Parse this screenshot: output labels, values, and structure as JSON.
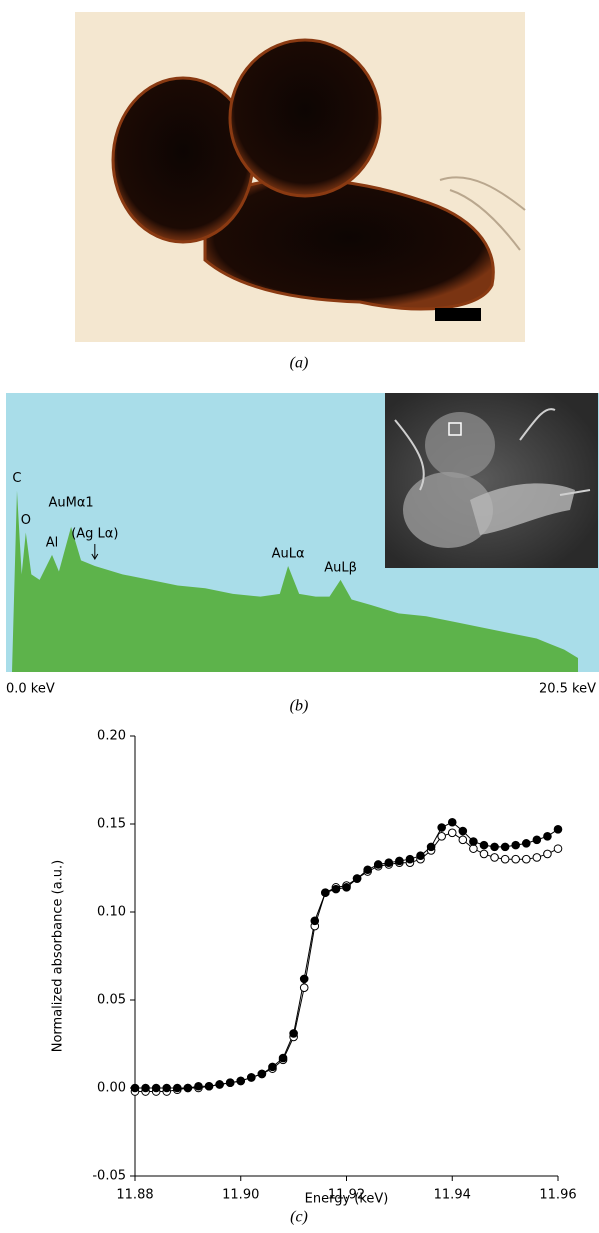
{
  "figure": {
    "panel_labels": [
      "(a)",
      "(b)",
      "(c)"
    ]
  },
  "chart_data": [
    {
      "type": "area",
      "color": "#5db34b",
      "background": "#a9dde9",
      "x": [
        0,
        0.18,
        0.35,
        0.5,
        0.7,
        1.0,
        1.45,
        1.7,
        2.14,
        2.5,
        3.0,
        4,
        5,
        6,
        7,
        8,
        9,
        9.7,
        10.0,
        10.4,
        11,
        11.5,
        11.9,
        12.3,
        13,
        14,
        15,
        16,
        17,
        18,
        19,
        19.5,
        20,
        20.5
      ],
      "values": [
        0,
        65,
        35,
        50,
        35,
        33,
        42,
        36,
        52,
        40,
        38,
        35,
        33,
        31,
        30,
        28,
        27,
        28,
        38,
        28,
        27,
        27,
        33,
        26,
        24,
        21,
        20,
        18,
        16,
        14,
        12,
        10,
        8,
        5
      ],
      "xlim": [
        0,
        20.5
      ],
      "ylim": [
        0,
        100
      ],
      "xticks": [
        {
          "value": 0,
          "label": "0.0 keV"
        },
        {
          "value": 20.5,
          "label": "20.5 keV"
        }
      ],
      "annotations": [
        {
          "text": "C",
          "x": 0.18
        },
        {
          "text": "O",
          "x": 0.5
        },
        {
          "text": "Al",
          "x": 1.45
        },
        {
          "text": "AuMα1",
          "x": 2.14
        },
        {
          "text": "(Ag Lα)",
          "x": 3.0
        },
        {
          "text": "AuLα",
          "x": 10.0
        },
        {
          "text": "AuLβ",
          "x": 11.9
        }
      ]
    },
    {
      "type": "line",
      "x_label": "Energy (keV)",
      "y_label": "Normalized absorbance (a.u.)",
      "x": [
        11.88,
        11.882,
        11.884,
        11.886,
        11.888,
        11.89,
        11.892,
        11.894,
        11.896,
        11.898,
        11.9,
        11.902,
        11.904,
        11.906,
        11.908,
        11.91,
        11.912,
        11.914,
        11.916,
        11.918,
        11.92,
        11.922,
        11.924,
        11.926,
        11.928,
        11.93,
        11.932,
        11.934,
        11.936,
        11.938,
        11.94,
        11.942,
        11.944,
        11.946,
        11.948,
        11.95,
        11.952,
        11.954,
        11.956,
        11.958,
        11.96
      ],
      "series": [
        {
          "color": "#000000",
          "marker": "open",
          "values": [
            -0.002,
            -0.002,
            -0.002,
            -0.002,
            -0.001,
            0.0,
            0.0,
            0.001,
            0.002,
            0.003,
            0.004,
            0.006,
            0.008,
            0.011,
            0.016,
            0.029,
            0.057,
            0.092,
            0.111,
            0.114,
            0.115,
            0.119,
            0.123,
            0.126,
            0.127,
            0.128,
            0.128,
            0.13,
            0.135,
            0.143,
            0.145,
            0.141,
            0.136,
            0.133,
            0.131,
            0.13,
            0.13,
            0.13,
            0.131,
            0.133,
            0.136
          ]
        },
        {
          "color": "#000000",
          "marker": "filled",
          "values": [
            0.0,
            0.0,
            0.0,
            0.0,
            0.0,
            0.0,
            0.001,
            0.001,
            0.002,
            0.003,
            0.004,
            0.006,
            0.008,
            0.012,
            0.017,
            0.031,
            0.062,
            0.095,
            0.111,
            0.113,
            0.114,
            0.119,
            0.124,
            0.127,
            0.128,
            0.129,
            0.13,
            0.132,
            0.137,
            0.148,
            0.151,
            0.146,
            0.14,
            0.138,
            0.137,
            0.137,
            0.138,
            0.139,
            0.141,
            0.143,
            0.147
          ]
        }
      ],
      "xlim": [
        11.88,
        11.96
      ],
      "ylim": [
        -0.05,
        0.2
      ],
      "xticks": [
        11.88,
        {
          "value": 11.9,
          "label": "11.90"
        },
        11.92,
        11.94,
        11.96
      ],
      "yticks": [
        -0.05,
        {
          "value": 0,
          "label": "0.00"
        },
        0.05,
        {
          "value": 0.1,
          "label": "0.10"
        },
        0.15,
        {
          "value": 0.2,
          "label": "0.20"
        }
      ]
    }
  ]
}
